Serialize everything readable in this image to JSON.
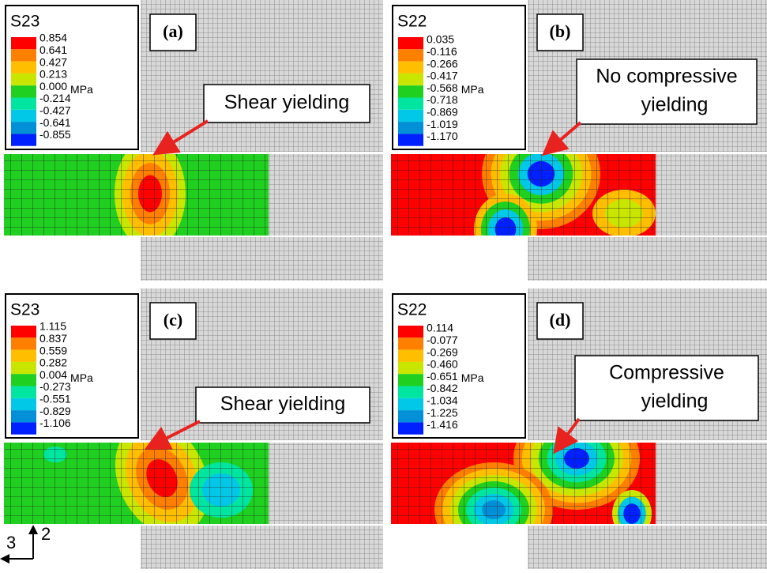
{
  "legend_colors": [
    "#ff0000",
    "#ff7f00",
    "#ffbf00",
    "#c8e600",
    "#20d020",
    "#00e6a0",
    "#00c8e6",
    "#0090d8",
    "#0020ff"
  ],
  "panels": [
    {
      "label": "(a)",
      "legend": {
        "title": "S23",
        "values": [
          "0.854",
          "0.641",
          "0.427",
          "0.213",
          "0.000",
          "-0.214",
          "-0.427",
          "-0.641",
          "-0.855"
        ],
        "unit": "MPa"
      },
      "annotation": [
        "Shear yielding"
      ]
    },
    {
      "label": "(b)",
      "legend": {
        "title": "S22",
        "values": [
          "0.035",
          "-0.116",
          "-0.266",
          "-0.417",
          "-0.568",
          "-0.718",
          "-0.869",
          "-1.019",
          "-1.170"
        ],
        "unit": "MPa"
      },
      "annotation": [
        "No compressive",
        "yielding"
      ]
    },
    {
      "label": "(c)",
      "legend": {
        "title": "S23",
        "values": [
          "1.115",
          "0.837",
          "0.559",
          "0.282",
          "0.004",
          "-0.273",
          "-0.551",
          "-0.829",
          "-1.106"
        ],
        "unit": "MPa"
      },
      "annotation": [
        "Shear yielding"
      ]
    },
    {
      "label": "(d)",
      "legend": {
        "title": "S22",
        "values": [
          "0.114",
          "-0.077",
          "-0.269",
          "-0.460",
          "-0.651",
          "-0.842",
          "-1.034",
          "-1.225",
          "-1.416"
        ],
        "unit": "MPa"
      },
      "annotation": [
        "Compressive",
        "yielding"
      ]
    }
  ],
  "axes": {
    "vertical": "2",
    "horizontal": "3"
  }
}
